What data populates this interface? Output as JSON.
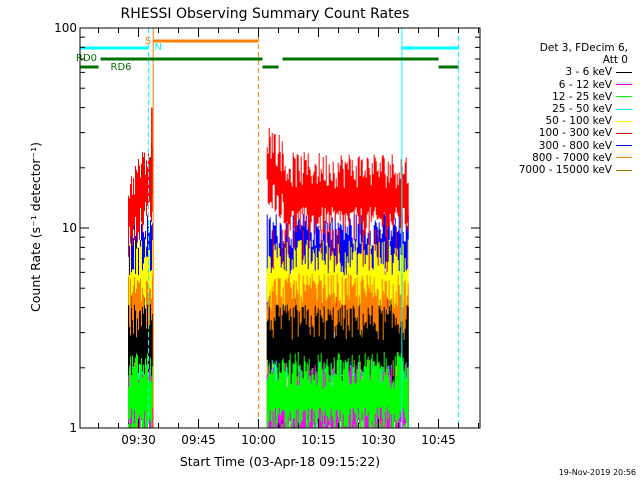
{
  "chart_data": {
    "type": "line",
    "title": "RHESSI Observing Summary Count Rates",
    "xlabel": "Start Time (03-Apr-18 09:15:22)",
    "ylabel": "Count Rate (s⁻¹ detector⁻¹)",
    "y_scale": "log",
    "xlim": [
      "09:15:22",
      "10:55:22"
    ],
    "ylim": [
      1,
      100
    ],
    "x_ticks": [
      "09:30",
      "09:45",
      "10:00",
      "10:15",
      "10:30",
      "10:45"
    ],
    "y_ticks": [
      "1",
      "10",
      "100"
    ],
    "legend_header": [
      "Det 3, FDecim 6,",
      "Att 0"
    ],
    "legend_position": "right",
    "series": [
      {
        "name": "3 - 6 keV",
        "color": "#000000",
        "typical": 2.6
      },
      {
        "name": "6 - 12 keV",
        "color": "#ff00ff",
        "typical": 1.3
      },
      {
        "name": "12 - 25 keV",
        "color": "#00ff00",
        "typical": 1.5
      },
      {
        "name": "25 - 50 keV",
        "color": "#00ffff",
        "typical": 2.2
      },
      {
        "name": "50 - 100 keV",
        "color": "#ffff00",
        "typical": 5.5
      },
      {
        "name": "100 - 300 keV",
        "color": "#ff0000",
        "typical": 14
      },
      {
        "name": "300 - 800 keV",
        "color": "#0000ff",
        "typical": 7.5
      },
      {
        "name": "800 - 7000 keV",
        "color": "#ff8000",
        "typical": 3.7
      },
      {
        "name": "7000 - 15000 keV",
        "color": "#9a6b00",
        "typical": 4.2
      }
    ],
    "segments": [
      {
        "start": "09:27:30",
        "end": "09:33:40"
      },
      {
        "start": "10:02:10",
        "end": "10:37:30"
      }
    ],
    "flags": {
      "S": {
        "color": "#ff8000",
        "start": "09:33:40",
        "end": "10:00:00"
      },
      "N": {
        "color": "#00ffff",
        "spans": [
          [
            "09:15:22",
            "09:32:30"
          ],
          [
            "10:35:50",
            "10:50:00"
          ]
        ]
      },
      "RD0": {
        "color": "#007000",
        "spans": [
          [
            "09:20:30",
            "10:01:00"
          ],
          [
            "10:06:00",
            "10:45:00"
          ]
        ]
      },
      "RD6": {
        "color": "#007000",
        "spans": [
          [
            "09:15:22",
            "09:20:00"
          ],
          [
            "10:01:00",
            "10:05:00"
          ],
          [
            "10:45:00",
            "10:50:00"
          ]
        ]
      }
    },
    "vlines": [
      {
        "t": "09:32:30",
        "color": "#00ffff",
        "dashed": true
      },
      {
        "t": "09:33:40",
        "color": "#ff8000",
        "dashed": false
      },
      {
        "t": "10:00:00",
        "color": "#ff8000",
        "dashed": true
      },
      {
        "t": "10:35:50",
        "color": "#00ffff",
        "dashed": false
      },
      {
        "t": "10:50:00",
        "color": "#00ffff",
        "dashed": true
      }
    ]
  },
  "timestamp": "19-Nov-2019 20:56"
}
